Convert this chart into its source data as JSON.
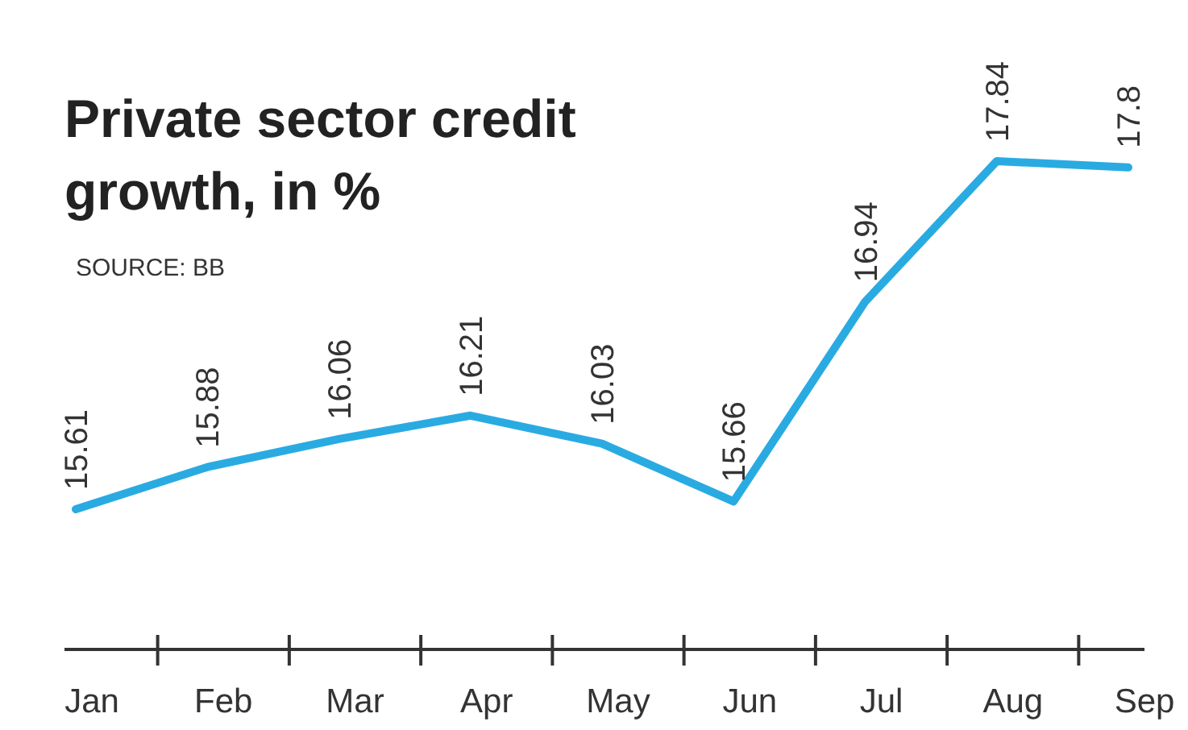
{
  "chart_data": {
    "type": "line",
    "title": "Private sector credit growth, in %",
    "annotations": [
      "SOURCE: BB"
    ],
    "categories": [
      "Jan",
      "Feb",
      "Mar",
      "Apr",
      "May",
      "Jun",
      "Jul",
      "Aug",
      "Sep"
    ],
    "series": [
      {
        "color": "#29abe2",
        "values": [
          15.61,
          15.88,
          16.06,
          16.21,
          16.03,
          15.66,
          16.94,
          17.84,
          17.8
        ]
      }
    ],
    "data_labels": true,
    "marker": "none",
    "line_style": "solid"
  }
}
